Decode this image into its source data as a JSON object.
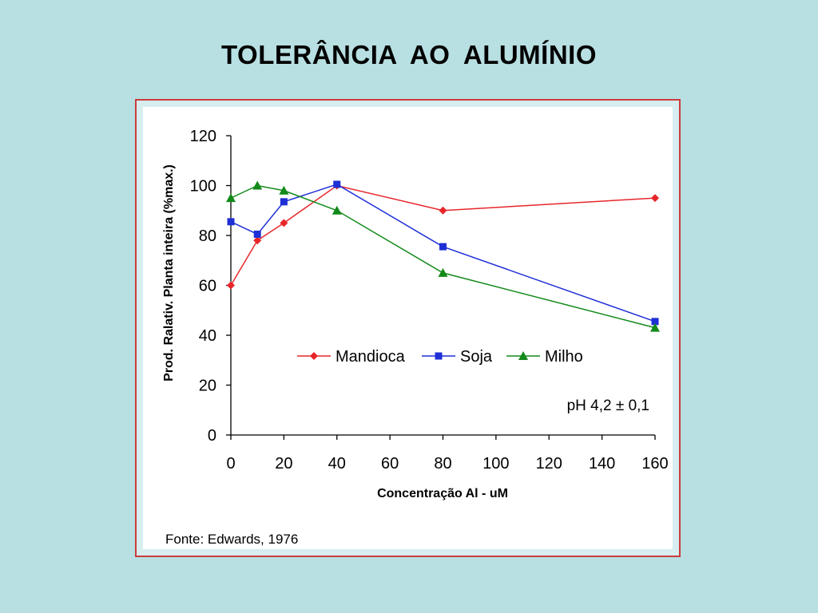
{
  "slide": {
    "title": "TOLERÂNCIA  AO  ALUMÍNIO"
  },
  "chart_data": {
    "type": "line",
    "xlabel": "Concentração Al - uM",
    "ylabel": "Prod. Ralativ. Planta inteira (%max.)",
    "xlim": [
      0,
      160
    ],
    "ylim": [
      0,
      120
    ],
    "xticks": [
      0,
      20,
      40,
      60,
      80,
      100,
      120,
      140,
      160
    ],
    "yticks": [
      0,
      20,
      40,
      60,
      80,
      100,
      120
    ],
    "legend_position": "center-right",
    "grid": false,
    "annotation": "pH 4,2 ±  0,1",
    "source": "Fonte: Edwards, 1976",
    "series": [
      {
        "name": "Mandioca",
        "color": "#e8262a",
        "marker": "diamond",
        "x": [
          0,
          10,
          20,
          40,
          80,
          160
        ],
        "y": [
          60,
          78,
          85,
          100,
          90,
          95
        ]
      },
      {
        "name": "Soja",
        "color": "#1f2fd6",
        "marker": "square",
        "x": [
          0,
          10,
          20,
          40,
          80,
          160
        ],
        "y": [
          85.5,
          80.5,
          93.5,
          100.5,
          75.5,
          45.5
        ]
      },
      {
        "name": "Milho",
        "color": "#138a1a",
        "marker": "triangle",
        "x": [
          0,
          10,
          20,
          40,
          80,
          160
        ],
        "y": [
          95,
          100,
          98,
          90,
          65,
          43
        ]
      }
    ]
  }
}
